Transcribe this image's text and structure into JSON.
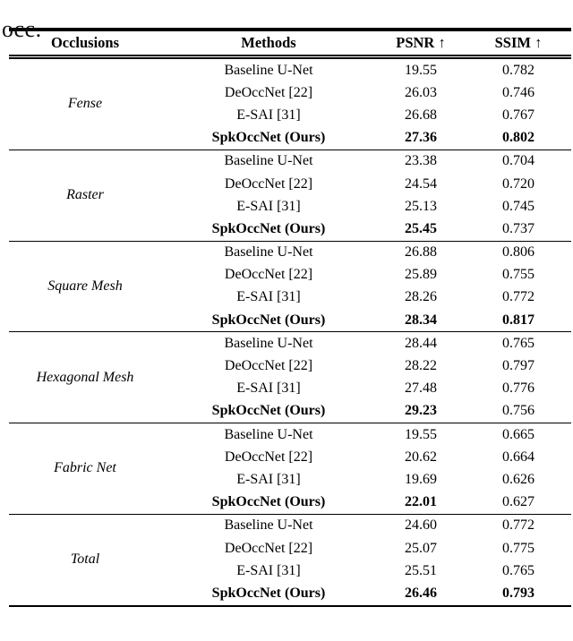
{
  "page": {
    "caption_fragment": "occ."
  },
  "table": {
    "headers": [
      "Occlusions",
      "Methods",
      "PSNR ↑",
      "SSIM ↑"
    ],
    "sections": [
      {
        "occlusion": "Fense",
        "rows": [
          {
            "method": "Baseline U-Net",
            "psnr": "19.55",
            "ssim": "0.782",
            "bold_method": false,
            "bold_psnr": false,
            "bold_ssim": false
          },
          {
            "method": "DeOccNet [22]",
            "psnr": "26.03",
            "ssim": "0.746",
            "bold_method": false,
            "bold_psnr": false,
            "bold_ssim": false
          },
          {
            "method": "E-SAI [31]",
            "psnr": "26.68",
            "ssim": "0.767",
            "bold_method": false,
            "bold_psnr": false,
            "bold_ssim": false
          },
          {
            "method": "SpkOccNet (Ours)",
            "psnr": "27.36",
            "ssim": "0.802",
            "bold_method": true,
            "bold_psnr": true,
            "bold_ssim": true
          }
        ]
      },
      {
        "occlusion": "Raster",
        "rows": [
          {
            "method": "Baseline U-Net",
            "psnr": "23.38",
            "ssim": "0.704",
            "bold_method": false,
            "bold_psnr": false,
            "bold_ssim": false
          },
          {
            "method": "DeOccNet [22]",
            "psnr": "24.54",
            "ssim": "0.720",
            "bold_method": false,
            "bold_psnr": false,
            "bold_ssim": false
          },
          {
            "method": "E-SAI [31]",
            "psnr": "25.13",
            "ssim": "0.745",
            "bold_method": false,
            "bold_psnr": false,
            "bold_ssim": false
          },
          {
            "method": "SpkOccNet (Ours)",
            "psnr": "25.45",
            "ssim": "0.737",
            "bold_method": true,
            "bold_psnr": true,
            "bold_ssim": false
          }
        ]
      },
      {
        "occlusion": "Square Mesh",
        "rows": [
          {
            "method": "Baseline U-Net",
            "psnr": "26.88",
            "ssim": "0.806",
            "bold_method": false,
            "bold_psnr": false,
            "bold_ssim": false
          },
          {
            "method": "DeOccNet [22]",
            "psnr": "25.89",
            "ssim": "0.755",
            "bold_method": false,
            "bold_psnr": false,
            "bold_ssim": false
          },
          {
            "method": "E-SAI [31]",
            "psnr": "28.26",
            "ssim": "0.772",
            "bold_method": false,
            "bold_psnr": false,
            "bold_ssim": false
          },
          {
            "method": "SpkOccNet (Ours)",
            "psnr": "28.34",
            "ssim": "0.817",
            "bold_method": true,
            "bold_psnr": true,
            "bold_ssim": true
          }
        ]
      },
      {
        "occlusion": "Hexagonal Mesh",
        "rows": [
          {
            "method": "Baseline U-Net",
            "psnr": "28.44",
            "ssim": "0.765",
            "bold_method": false,
            "bold_psnr": false,
            "bold_ssim": false
          },
          {
            "method": "DeOccNet [22]",
            "psnr": "28.22",
            "ssim": "0.797",
            "bold_method": false,
            "bold_psnr": false,
            "bold_ssim": false
          },
          {
            "method": "E-SAI [31]",
            "psnr": "27.48",
            "ssim": "0.776",
            "bold_method": false,
            "bold_psnr": false,
            "bold_ssim": false
          },
          {
            "method": "SpkOccNet (Ours)",
            "psnr": "29.23",
            "ssim": "0.756",
            "bold_method": true,
            "bold_psnr": true,
            "bold_ssim": false
          }
        ]
      },
      {
        "occlusion": "Fabric Net",
        "rows": [
          {
            "method": "Baseline U-Net",
            "psnr": "19.55",
            "ssim": "0.665",
            "bold_method": false,
            "bold_psnr": false,
            "bold_ssim": false
          },
          {
            "method": "DeOccNet [22]",
            "psnr": "20.62",
            "ssim": "0.664",
            "bold_method": false,
            "bold_psnr": false,
            "bold_ssim": false
          },
          {
            "method": "E-SAI [31]",
            "psnr": "19.69",
            "ssim": "0.626",
            "bold_method": false,
            "bold_psnr": false,
            "bold_ssim": false
          },
          {
            "method": "SpkOccNet (Ours)",
            "psnr": "22.01",
            "ssim": "0.627",
            "bold_method": true,
            "bold_psnr": true,
            "bold_ssim": false
          }
        ]
      },
      {
        "occlusion": "Total",
        "rows": [
          {
            "method": "Baseline U-Net",
            "psnr": "24.60",
            "ssim": "0.772",
            "bold_method": false,
            "bold_psnr": false,
            "bold_ssim": false
          },
          {
            "method": "DeOccNet [22]",
            "psnr": "25.07",
            "ssim": "0.775",
            "bold_method": false,
            "bold_psnr": false,
            "bold_ssim": false
          },
          {
            "method": "E-SAI [31]",
            "psnr": "25.51",
            "ssim": "0.765",
            "bold_method": false,
            "bold_psnr": false,
            "bold_ssim": false
          },
          {
            "method": "SpkOccNet (Ours)",
            "psnr": "26.46",
            "ssim": "0.793",
            "bold_method": true,
            "bold_psnr": true,
            "bold_ssim": true
          }
        ]
      }
    ]
  }
}
